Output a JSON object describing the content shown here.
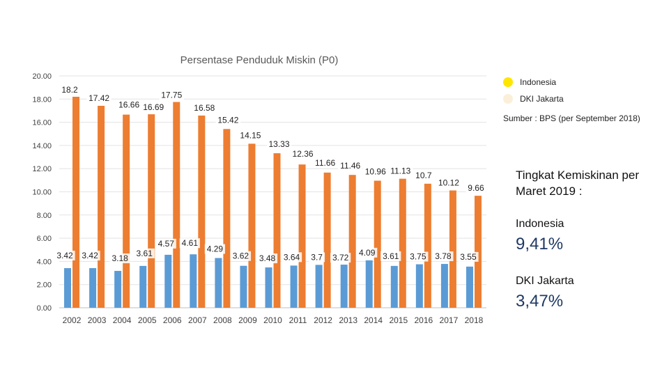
{
  "chart_data": {
    "type": "bar",
    "title": "Persentase Penduduk Miskin (P0)",
    "categories": [
      "2002",
      "2003",
      "2004",
      "2005",
      "2006",
      "2007",
      "2008",
      "2009",
      "2010",
      "2011",
      "2012",
      "2013",
      "2014",
      "2015",
      "2016",
      "2017",
      "2018"
    ],
    "series": [
      {
        "name": "Indonesia",
        "color": "#ED7D31",
        "values": [
          18.2,
          17.42,
          16.66,
          16.69,
          17.75,
          16.58,
          15.42,
          14.15,
          13.33,
          12.36,
          11.66,
          11.46,
          10.96,
          11.13,
          10.7,
          10.12,
          9.66
        ],
        "labels": [
          "18.2",
          "17.42",
          "16.66",
          "16.69",
          "17.75",
          "16.58",
          "15.42",
          "14.15",
          "13.33",
          "12.36",
          "11.66",
          "11.46",
          "10.96",
          "11.13",
          "10.7",
          "10.12",
          "9.66"
        ]
      },
      {
        "name": "DKI Jakarta",
        "color": "#5B9BD5",
        "values": [
          3.42,
          3.42,
          3.18,
          3.61,
          4.57,
          4.61,
          4.29,
          3.62,
          3.48,
          3.64,
          3.7,
          3.72,
          4.09,
          3.61,
          3.75,
          3.78,
          3.55
        ],
        "labels": [
          "3.42",
          "3.42",
          "3.18",
          "3.61",
          "4.57",
          "4.61",
          "4.29",
          "3.62",
          "3.48",
          "3.64",
          "3.7",
          "3.72",
          "4.09",
          "3.61",
          "3.75",
          "3.78",
          "3.55"
        ]
      }
    ],
    "y_ticks": [
      "0.00",
      "2.00",
      "4.00",
      "6.00",
      "8.00",
      "10.00",
      "12.00",
      "14.00",
      "16.00",
      "18.00",
      "20.00"
    ],
    "ylim": [
      0,
      20
    ],
    "grid": true,
    "legend": [
      {
        "label": "Indonesia",
        "color": "#FFE600"
      },
      {
        "label": "DKI Jakarta",
        "color": "#FBEFD9"
      }
    ],
    "legend_position": "top-right",
    "source": "Sumber : BPS (per September 2018)"
  },
  "side_panel": {
    "title": "Tingkat Kemiskinan per Maret 2019 :",
    "regions": [
      {
        "name": "Indonesia",
        "value": "9,41%"
      },
      {
        "name": "DKI Jakarta",
        "value": "3,47%"
      }
    ]
  }
}
